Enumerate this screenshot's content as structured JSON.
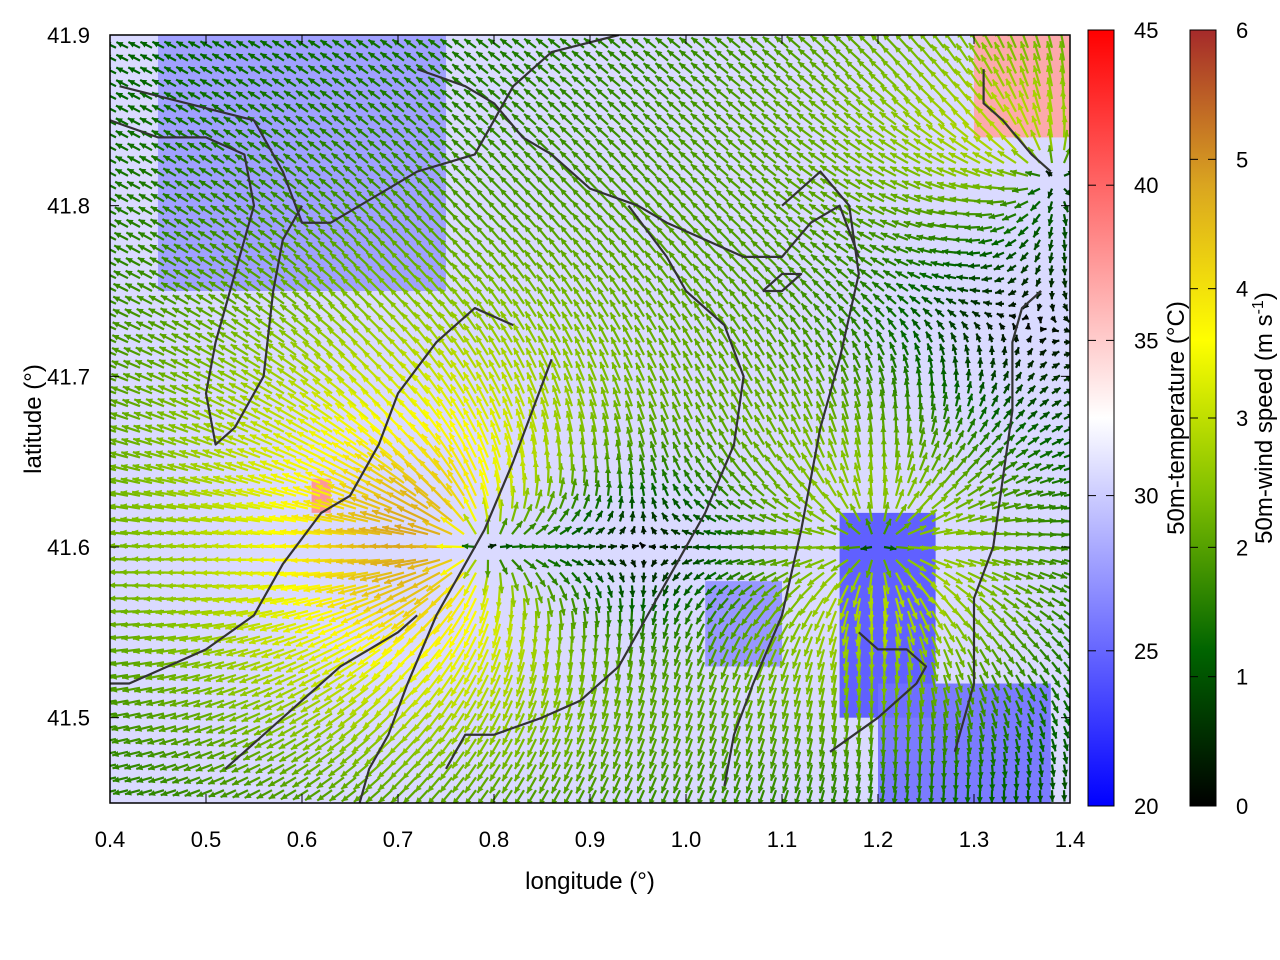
{
  "chart_data": {
    "type": "heatmap",
    "title": "",
    "xlabel": "longitude (°)",
    "ylabel": "latitude (°)",
    "xlim": [
      0.4,
      1.4
    ],
    "ylim": [
      41.45,
      41.9
    ],
    "x_ticks": [
      "0.4",
      "0.5",
      "0.6",
      "0.7",
      "0.8",
      "0.9",
      "1.0",
      "1.1",
      "1.2",
      "1.3",
      "1.4"
    ],
    "y_ticks": [
      "41.5",
      "41.6",
      "41.7",
      "41.8",
      "41.9"
    ],
    "grid": false,
    "layers": [
      {
        "name": "50m-temperature",
        "kind": "filled color map",
        "units": "°C",
        "colorbar": {
          "label": "50m-temperature (°C)",
          "range": [
            20,
            45
          ],
          "ticks": [
            "20",
            "25",
            "30",
            "35",
            "40",
            "45"
          ],
          "palette": [
            "#0000ff",
            "#ffffff",
            "#ff0000"
          ]
        },
        "regions": [
          {
            "lon": [
              0.4,
              1.4
            ],
            "lat": [
              41.45,
              41.9
            ],
            "value": 30.5
          },
          {
            "lon": [
              1.16,
              1.26
            ],
            "lat": [
              41.5,
              41.62
            ],
            "value": 24
          },
          {
            "lon": [
              1.2,
              1.38
            ],
            "lat": [
              41.45,
              41.52
            ],
            "value": 25.5
          },
          {
            "lon": [
              1.02,
              1.1
            ],
            "lat": [
              41.53,
              41.58
            ],
            "value": 27
          },
          {
            "lon": [
              0.45,
              0.75
            ],
            "lat": [
              41.75,
              41.9
            ],
            "value": 27.5
          },
          {
            "lon": [
              1.3,
              1.4
            ],
            "lat": [
              41.84,
              41.9
            ],
            "value": 37
          },
          {
            "lon": [
              0.61,
              0.63
            ],
            "lat": [
              41.62,
              41.64
            ],
            "value": 38
          }
        ]
      },
      {
        "name": "50m-wind",
        "kind": "vector field",
        "units": "m s-1",
        "colorbar": {
          "label": "50m-wind speed (m s",
          "label_superscript": "-1",
          "label_end": ")",
          "range": [
            0,
            6
          ],
          "ticks": [
            "0",
            "1",
            "2",
            "3",
            "4",
            "5",
            "6"
          ],
          "palette": [
            "#000000",
            "#006400",
            "#7fbf00",
            "#ffff00",
            "#daa520",
            "#a52a2a"
          ]
        },
        "sources": [
          {
            "lon": 0.78,
            "lat": 41.6,
            "strength": 1.0
          },
          {
            "lon": 1.2,
            "lat": 41.6,
            "strength": 0.8
          },
          {
            "lon": 1.38,
            "lat": 41.82,
            "strength": 0.6
          }
        ],
        "background_flow_deg": 165
      }
    ],
    "contours": [
      [
        [
          0.41,
          41.87
        ],
        [
          0.48,
          41.86
        ],
        [
          0.55,
          41.85
        ],
        [
          0.58,
          41.82
        ],
        [
          0.6,
          41.79
        ],
        [
          0.63,
          41.79
        ],
        [
          0.66,
          41.8
        ],
        [
          0.72,
          41.82
        ],
        [
          0.78,
          41.83
        ],
        [
          0.8,
          41.85
        ],
        [
          0.82,
          41.87
        ],
        [
          0.86,
          41.89
        ],
        [
          0.93,
          41.9
        ]
      ],
      [
        [
          0.4,
          41.85
        ],
        [
          0.45,
          41.84
        ],
        [
          0.5,
          41.84
        ],
        [
          0.54,
          41.83
        ],
        [
          0.55,
          41.8
        ],
        [
          0.53,
          41.76
        ],
        [
          0.51,
          41.72
        ],
        [
          0.5,
          41.69
        ],
        [
          0.51,
          41.66
        ],
        [
          0.53,
          41.67
        ],
        [
          0.56,
          41.7
        ],
        [
          0.57,
          41.75
        ],
        [
          0.58,
          41.78
        ],
        [
          0.6,
          41.8
        ]
      ],
      [
        [
          0.72,
          41.88
        ],
        [
          0.77,
          41.87
        ],
        [
          0.8,
          41.86
        ],
        [
          0.83,
          41.84
        ],
        [
          0.86,
          41.83
        ],
        [
          0.9,
          41.81
        ],
        [
          0.95,
          41.8
        ],
        [
          0.98,
          41.79
        ],
        [
          1.02,
          41.78
        ],
        [
          1.06,
          41.77
        ],
        [
          1.1,
          41.77
        ],
        [
          1.13,
          41.79
        ],
        [
          1.16,
          41.8
        ],
        [
          1.18,
          41.77
        ]
      ],
      [
        [
          0.94,
          41.8
        ],
        [
          0.98,
          41.77
        ],
        [
          1.0,
          41.75
        ],
        [
          1.04,
          41.73
        ],
        [
          1.06,
          41.7
        ],
        [
          1.05,
          41.66
        ],
        [
          1.02,
          41.62
        ],
        [
          0.99,
          41.59
        ],
        [
          0.96,
          41.56
        ],
        [
          0.93,
          41.53
        ],
        [
          0.89,
          41.51
        ],
        [
          0.85,
          41.5
        ],
        [
          0.8,
          41.49
        ],
        [
          0.77,
          41.49
        ],
        [
          0.75,
          41.47
        ]
      ],
      [
        [
          1.1,
          41.8
        ],
        [
          1.14,
          41.82
        ],
        [
          1.17,
          41.8
        ],
        [
          1.18,
          41.76
        ],
        [
          1.16,
          41.71
        ],
        [
          1.14,
          41.67
        ],
        [
          1.12,
          41.61
        ],
        [
          1.1,
          41.56
        ],
        [
          1.07,
          41.52
        ],
        [
          1.05,
          41.49
        ],
        [
          1.04,
          41.46
        ]
      ],
      [
        [
          0.86,
          41.71
        ],
        [
          0.84,
          41.68
        ],
        [
          0.82,
          41.65
        ],
        [
          0.79,
          41.61
        ],
        [
          0.76,
          41.58
        ],
        [
          0.74,
          41.56
        ],
        [
          0.71,
          41.52
        ],
        [
          0.69,
          41.49
        ],
        [
          0.67,
          41.47
        ],
        [
          0.66,
          41.45
        ]
      ],
      [
        [
          0.82,
          41.73
        ],
        [
          0.78,
          41.74
        ],
        [
          0.74,
          41.72
        ],
        [
          0.7,
          41.69
        ],
        [
          0.68,
          41.66
        ],
        [
          0.65,
          41.63
        ],
        [
          0.62,
          41.62
        ],
        [
          0.58,
          41.59
        ],
        [
          0.55,
          41.56
        ],
        [
          0.5,
          41.54
        ],
        [
          0.46,
          41.53
        ],
        [
          0.42,
          41.52
        ],
        [
          0.4,
          41.52
        ]
      ],
      [
        [
          0.52,
          41.47
        ],
        [
          0.56,
          41.49
        ],
        [
          0.6,
          41.51
        ],
        [
          0.64,
          41.53
        ],
        [
          0.67,
          41.54
        ],
        [
          0.7,
          41.55
        ],
        [
          0.72,
          41.56
        ]
      ],
      [
        [
          1.28,
          41.48
        ],
        [
          1.3,
          41.52
        ],
        [
          1.3,
          41.57
        ],
        [
          1.32,
          41.6
        ],
        [
          1.33,
          41.64
        ],
        [
          1.34,
          41.68
        ],
        [
          1.34,
          41.72
        ],
        [
          1.35,
          41.74
        ],
        [
          1.37,
          41.75
        ]
      ],
      [
        [
          1.15,
          41.48
        ],
        [
          1.2,
          41.5
        ],
        [
          1.24,
          41.52
        ],
        [
          1.25,
          41.53
        ],
        [
          1.23,
          41.54
        ],
        [
          1.2,
          41.54
        ],
        [
          1.18,
          41.55
        ]
      ],
      [
        [
          1.31,
          41.88
        ],
        [
          1.31,
          41.86
        ],
        [
          1.33,
          41.85
        ],
        [
          1.36,
          41.83
        ],
        [
          1.38,
          41.82
        ]
      ],
      [
        [
          1.08,
          41.75
        ],
        [
          1.1,
          41.75
        ],
        [
          1.12,
          41.76
        ],
        [
          1.1,
          41.76
        ],
        [
          1.08,
          41.75
        ]
      ]
    ]
  }
}
